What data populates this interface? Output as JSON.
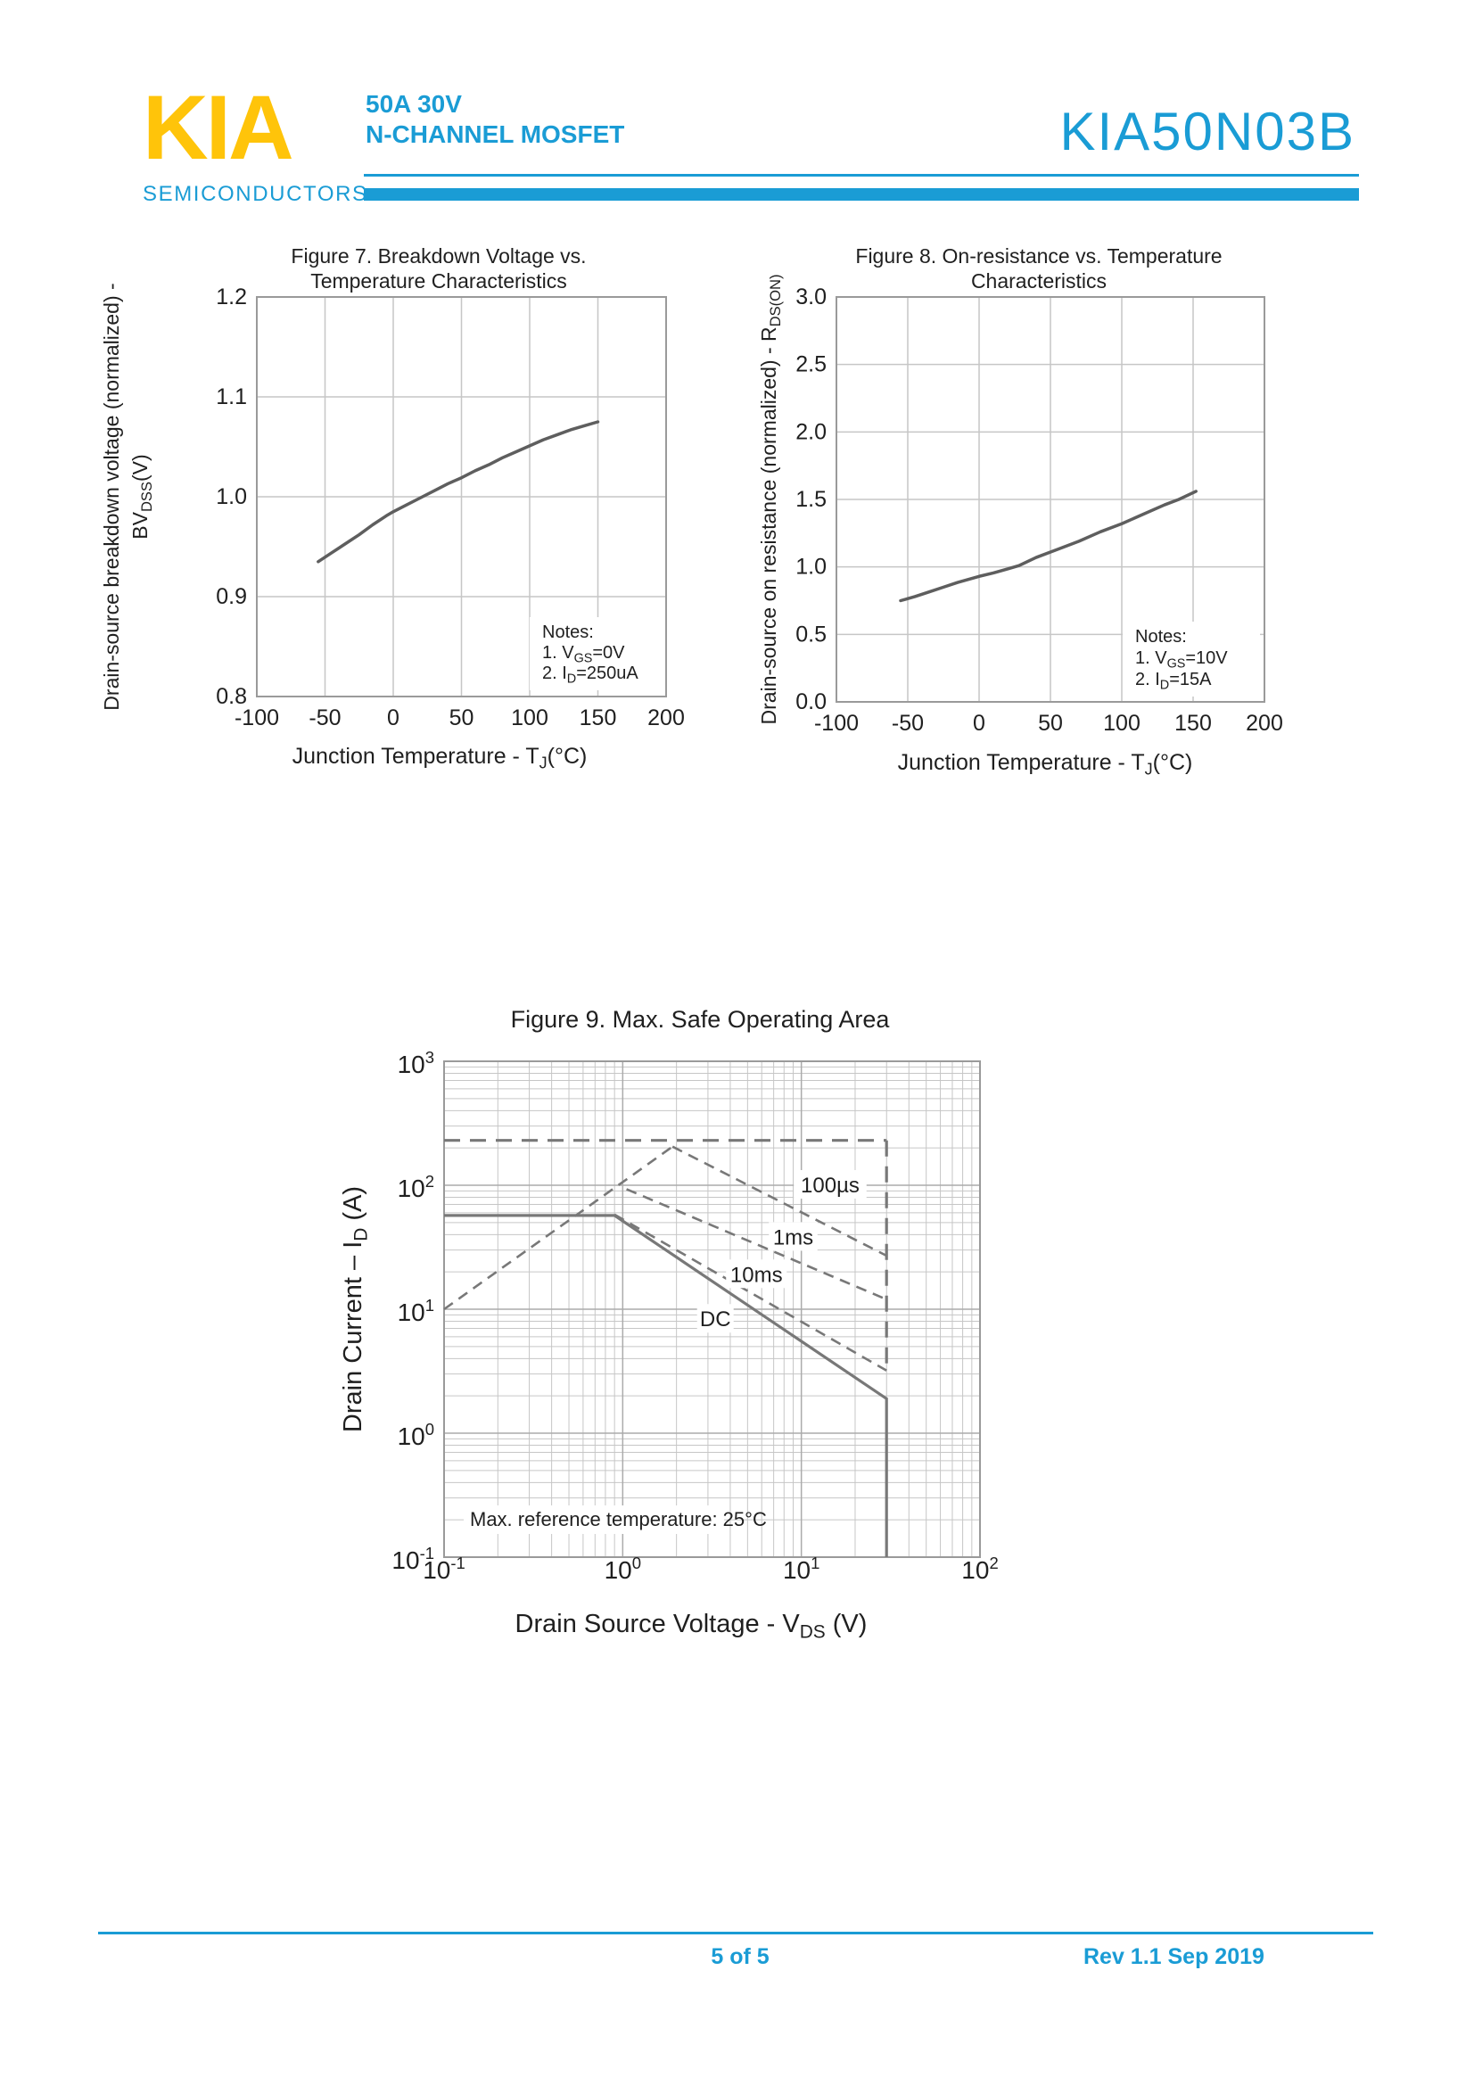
{
  "colors": {
    "accent_cyan": "#1A9CD5",
    "brand_yellow": "#FFC40A",
    "chart_ink": "#1F1F1F",
    "curve_gray": "#5E5E5E",
    "soa_line_gray": "#787878",
    "grid_light": "#C6C6C6",
    "grid_major": "#ABABAB",
    "plot_border": "#9A9A9A"
  },
  "header": {
    "brand": "KIA",
    "brand_sub": "SEMICONDUCTORS",
    "rating": "50A 30V",
    "family": "N-CHANNEL MOSFET",
    "part": "KIA50N03B"
  },
  "footer": {
    "page": "5 of 5",
    "rev": "Rev 1.1 Sep 2019"
  },
  "chart_data": [
    {
      "id": "fig7",
      "type": "line",
      "scale": "linear",
      "title_lines": [
        "Figure 7. Breakdown Voltage vs.",
        "Temperature Characteristics"
      ],
      "xlabel": "Junction Temperature - T~J~(°C)",
      "ylabel_lines": [
        "Drain-source breakdown voltage (normalized)  -",
        "BV~DSS~(V)"
      ],
      "x": {
        "min": -100,
        "max": 200,
        "ticks": [
          -100,
          -50,
          0,
          50,
          100,
          150,
          200
        ],
        "tick_labels": [
          "-100",
          "-50",
          "0",
          "50",
          "100",
          "150",
          "200"
        ]
      },
      "y": {
        "min": 0.8,
        "max": 1.2,
        "ticks": [
          1.2,
          1.1,
          1.0,
          0.9,
          0.8
        ],
        "tick_labels": [
          "1.2",
          "1.1",
          "1.0",
          "0.9",
          "0.8"
        ]
      },
      "notes": [
        "Notes:",
        "1. V~GS~=0V",
        "2. I~D~=250uA"
      ],
      "series": [
        {
          "name": "breakdown-voltage-normalized",
          "points": [
            [
              -55,
              0.935
            ],
            [
              -45,
              0.944
            ],
            [
              -35,
              0.953
            ],
            [
              -25,
              0.962
            ],
            [
              -15,
              0.972
            ],
            [
              -5,
              0.981
            ],
            [
              0,
              0.985
            ],
            [
              10,
              0.992
            ],
            [
              20,
              0.999
            ],
            [
              30,
              1.006
            ],
            [
              40,
              1.013
            ],
            [
              50,
              1.019
            ],
            [
              60,
              1.026
            ],
            [
              70,
              1.032
            ],
            [
              80,
              1.039
            ],
            [
              90,
              1.045
            ],
            [
              100,
              1.051
            ],
            [
              110,
              1.057
            ],
            [
              120,
              1.062
            ],
            [
              130,
              1.067
            ],
            [
              140,
              1.071
            ],
            [
              150,
              1.075
            ]
          ]
        }
      ]
    },
    {
      "id": "fig8",
      "type": "line",
      "scale": "linear",
      "title_lines": [
        "Figure 8. On-resistance vs. Temperature",
        "Characteristics"
      ],
      "xlabel": "Junction Temperature - T~J~(°C)",
      "ylabel_lines": [
        "Drain-source on resistance (normalized) - R~DS(ON)~"
      ],
      "x": {
        "min": -100,
        "max": 200,
        "ticks": [
          -100,
          -50,
          0,
          50,
          100,
          150,
          200
        ],
        "tick_labels": [
          "-100",
          "-50",
          "0",
          "50",
          "100",
          "150",
          "200"
        ]
      },
      "y": {
        "min": 0.0,
        "max": 3.0,
        "ticks": [
          3.0,
          2.5,
          2.0,
          1.5,
          1.0,
          0.5,
          0.0
        ],
        "tick_labels": [
          "3.0",
          "2.5",
          "2.0",
          "1.5",
          "1.0",
          "0.5",
          "0.0"
        ]
      },
      "notes": [
        "Notes:",
        "1. V~GS~=10V",
        "2. I~D~=15A"
      ],
      "series": [
        {
          "name": "on-resistance-normalized",
          "points": [
            [
              -55,
              0.75
            ],
            [
              -45,
              0.78
            ],
            [
              -35,
              0.815
            ],
            [
              -25,
              0.85
            ],
            [
              -15,
              0.885
            ],
            [
              -5,
              0.915
            ],
            [
              0,
              0.93
            ],
            [
              10,
              0.955
            ],
            [
              20,
              0.985
            ],
            [
              28,
              1.01
            ],
            [
              40,
              1.07
            ],
            [
              55,
              1.13
            ],
            [
              70,
              1.19
            ],
            [
              85,
              1.26
            ],
            [
              100,
              1.32
            ],
            [
              115,
              1.39
            ],
            [
              130,
              1.46
            ],
            [
              140,
              1.5
            ],
            [
              152,
              1.56
            ]
          ]
        }
      ]
    },
    {
      "id": "fig9",
      "type": "line",
      "scale": "log-log",
      "title_lines": [
        "Figure 9. Max. Safe Operating Area"
      ],
      "xlabel": "Drain Source Voltage  -  V~DS~ (V)",
      "ylabel_lines": [
        "Drain Current – I~D~ (A)"
      ],
      "x": {
        "min_exp": -1,
        "max_exp": 2,
        "tick_labels": [
          "10^-1^",
          "10^0^",
          "10^1^",
          "10^2^"
        ]
      },
      "y": {
        "min_exp": -1,
        "max_exp": 3,
        "tick_labels": [
          "10^3^",
          "10^2^",
          "10^1^",
          "10^0^",
          "10^-1^"
        ]
      },
      "note": "Max. reference temperature: 25°C",
      "lines": [
        {
          "name": "max-pulsed-current-limit",
          "style": "dashed-bold",
          "points": [
            [
              0.1,
              230
            ],
            [
              30,
              230
            ]
          ]
        },
        {
          "name": "voltage-limit-dashed",
          "style": "dashed-bold",
          "points": [
            [
              30,
              230
            ],
            [
              30,
              3.2
            ]
          ]
        },
        {
          "name": "rdson-limit",
          "style": "dashed",
          "points": [
            [
              0.1,
              10
            ],
            [
              1.9,
              205
            ]
          ]
        },
        {
          "name": "pulse-100us",
          "style": "dashed",
          "points": [
            [
              1.9,
              205
            ],
            [
              30,
              27
            ]
          ]
        },
        {
          "name": "pulse-1ms",
          "style": "dashed",
          "points": [
            [
              1.05,
              93
            ],
            [
              30,
              12
            ]
          ]
        },
        {
          "name": "pulse-10ms",
          "style": "dashed",
          "points": [
            [
              0.9,
              58
            ],
            [
              30,
              3.2
            ]
          ]
        },
        {
          "name": "dc-limit",
          "style": "solid",
          "points": [
            [
              0.1,
              57
            ],
            [
              0.9,
              57
            ],
            [
              30,
              1.9
            ],
            [
              30,
              0.1
            ]
          ]
        }
      ],
      "labels": [
        {
          "text": "100µs",
          "v": 14.5,
          "i": 100
        },
        {
          "text": "1ms",
          "v": 9,
          "i": 38
        },
        {
          "text": "10ms",
          "v": 5.6,
          "i": 19
        },
        {
          "text": "DC",
          "v": 3.3,
          "i": 8.3
        }
      ]
    }
  ]
}
